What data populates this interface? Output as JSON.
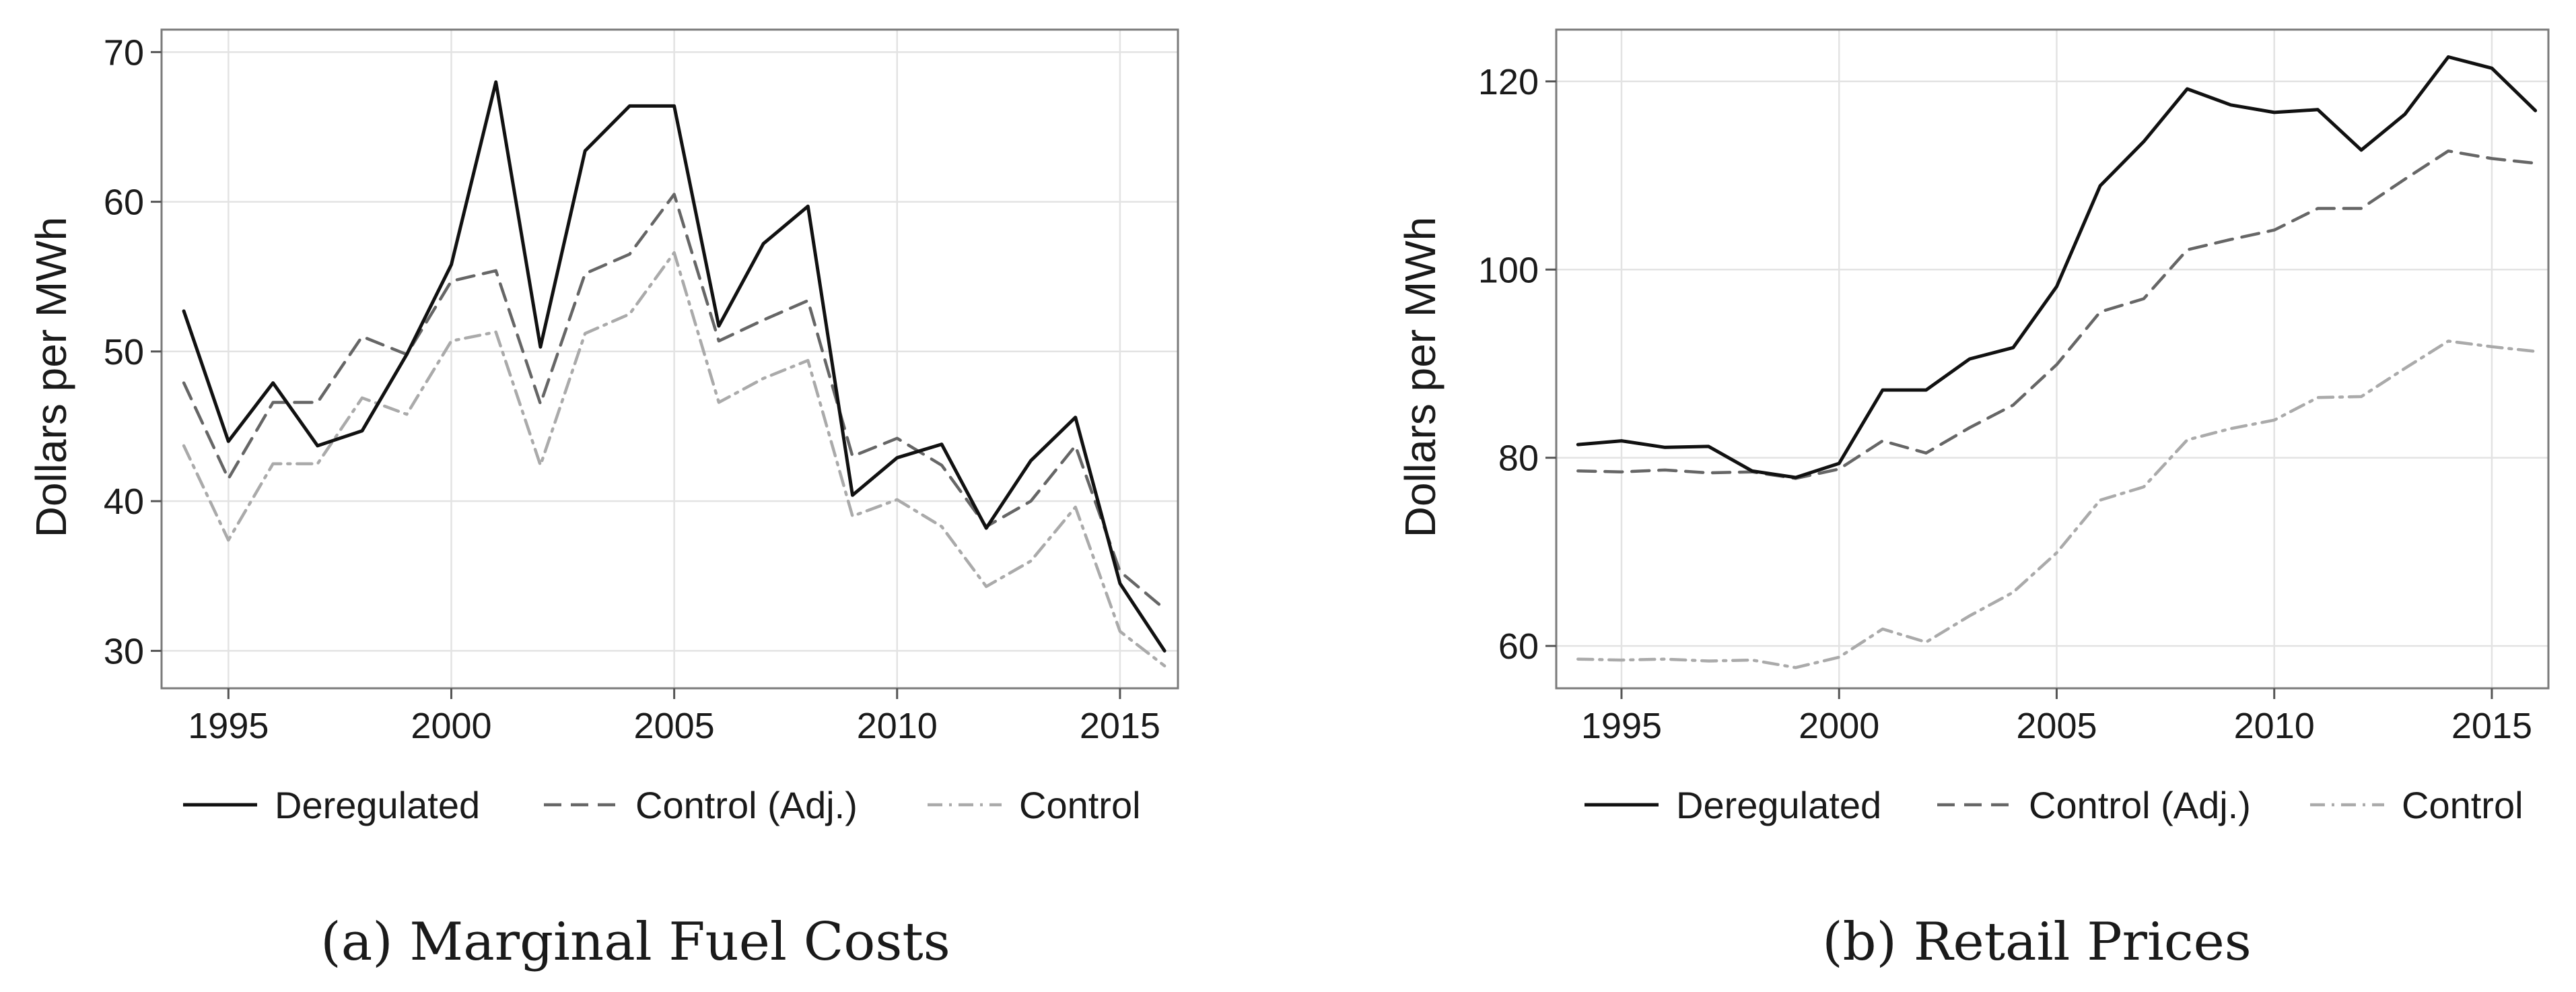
{
  "chart_data": [
    {
      "type": "line",
      "caption": "(a) Marginal Fuel Costs",
      "ylabel": "Dollars per MWh",
      "xlabel": "",
      "xlim": [
        1993.5,
        2016.3
      ],
      "ylim": [
        27.5,
        71.5
      ],
      "xticks": [
        1995,
        2000,
        2005,
        2010,
        2015
      ],
      "yticks": [
        30,
        40,
        50,
        60,
        70
      ],
      "grid": true,
      "legend": "bottom",
      "x": [
        1994,
        1995,
        1996,
        1997,
        1998,
        1999,
        2000,
        2001,
        2002,
        2003,
        2004,
        2005,
        2006,
        2007,
        2008,
        2009,
        2010,
        2011,
        2012,
        2013,
        2014,
        2015,
        2016
      ],
      "series": [
        {
          "name": "Deregulated",
          "style": "solid",
          "color": "#111111",
          "values": [
            52.7,
            44.0,
            47.9,
            43.7,
            44.7,
            49.8,
            55.8,
            68.0,
            50.3,
            63.4,
            66.4,
            66.4,
            51.7,
            57.2,
            59.7,
            40.4,
            42.9,
            43.8,
            38.2,
            42.7,
            45.6,
            34.5,
            30.0
          ]
        },
        {
          "name": "Control (Adj.)",
          "style": "dashed",
          "color": "#666666",
          "values": [
            47.9,
            41.5,
            46.6,
            46.6,
            51.0,
            49.8,
            54.7,
            55.4,
            46.5,
            55.2,
            56.5,
            60.5,
            50.7,
            52.1,
            53.4,
            43.0,
            44.2,
            42.4,
            38.3,
            40.0,
            43.7,
            35.3,
            32.8
          ]
        },
        {
          "name": "Control",
          "style": "dashdot",
          "color": "#aaaaaa",
          "values": [
            43.7,
            37.4,
            42.5,
            42.5,
            46.9,
            45.8,
            50.7,
            51.3,
            42.4,
            51.2,
            52.5,
            56.6,
            46.6,
            48.2,
            49.4,
            39.0,
            40.1,
            38.3,
            34.3,
            36.0,
            39.6,
            31.3,
            29.0
          ]
        }
      ]
    },
    {
      "type": "line",
      "caption": "(b) Retail Prices",
      "ylabel": "Dollars per MWh",
      "xlabel": "",
      "xlim": [
        1993.5,
        2016.3
      ],
      "ylim": [
        55.5,
        125.5
      ],
      "xticks": [
        1995,
        2000,
        2005,
        2010,
        2015
      ],
      "yticks": [
        60,
        80,
        100,
        120
      ],
      "grid": true,
      "legend": "bottom",
      "x": [
        1994,
        1995,
        1996,
        1997,
        1998,
        1999,
        2000,
        2001,
        2002,
        2003,
        2004,
        2005,
        2006,
        2007,
        2008,
        2009,
        2010,
        2011,
        2012,
        2013,
        2014,
        2015,
        2016
      ],
      "series": [
        {
          "name": "Deregulated",
          "style": "solid",
          "color": "#111111",
          "values": [
            81.4,
            81.8,
            81.1,
            81.2,
            78.6,
            77.9,
            79.4,
            87.2,
            87.2,
            90.5,
            91.7,
            98.2,
            108.9,
            113.6,
            119.2,
            117.5,
            116.7,
            117.0,
            112.7,
            116.5,
            122.6,
            121.4,
            116.9
          ]
        },
        {
          "name": "Control (Adj.)",
          "style": "dashed",
          "color": "#666666",
          "values": [
            78.6,
            78.5,
            78.7,
            78.4,
            78.5,
            77.8,
            78.8,
            81.8,
            80.5,
            83.2,
            85.6,
            89.9,
            95.5,
            96.9,
            102.1,
            103.2,
            104.2,
            106.5,
            106.5,
            109.6,
            112.6,
            111.8,
            111.3
          ]
        },
        {
          "name": "Control",
          "style": "dashdot",
          "color": "#aaaaaa",
          "values": [
            58.6,
            58.5,
            58.6,
            58.4,
            58.5,
            57.7,
            58.8,
            61.8,
            60.4,
            63.2,
            65.7,
            69.9,
            75.5,
            76.9,
            81.9,
            83.1,
            84.0,
            86.4,
            86.5,
            89.5,
            92.4,
            91.8,
            91.3
          ]
        }
      ]
    }
  ]
}
